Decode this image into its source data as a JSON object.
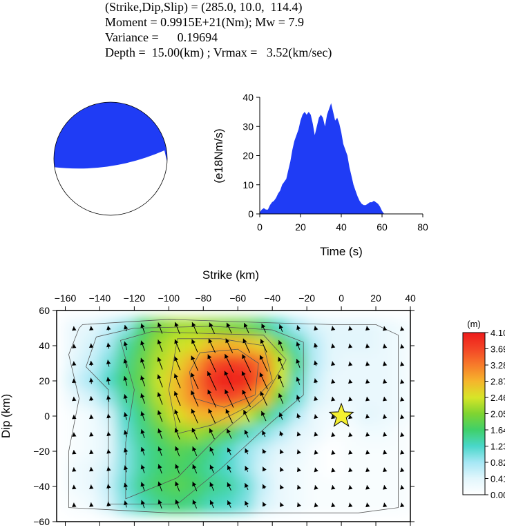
{
  "header": {
    "line1": "(Strike,Dip,Slip) = (285.0, 10.0,  114.4)",
    "line2": "Moment = 0.9915E+21(Nm); Mw = 7.9",
    "line3": "Variance =      0.19694",
    "line4": "Depth =  15.00(km) ; Vrmax =   3.52(km/sec)"
  },
  "colors": {
    "fill_blue": "#1f3cf5",
    "star": "#f5f030",
    "axis": "#000000"
  },
  "chart_data": [
    {
      "type": "beachball",
      "strike": 285.0,
      "dip": 10.0,
      "slip": 114.4
    },
    {
      "type": "area",
      "xlabel": "Time (s)",
      "ylabel": "(e18Nm/s)",
      "xlim": [
        0,
        80
      ],
      "ylim": [
        0,
        40
      ],
      "xticks": [
        0,
        20,
        40,
        60,
        80
      ],
      "yticks": [
        0,
        10,
        20,
        30,
        40
      ],
      "x": [
        0,
        1,
        2,
        3,
        4,
        5,
        6,
        7,
        8,
        9,
        10,
        11,
        12,
        13,
        14,
        15,
        16,
        17,
        18,
        19,
        20,
        21,
        22,
        23,
        24,
        25,
        26,
        27,
        28,
        29,
        30,
        31,
        32,
        33,
        34,
        35,
        36,
        37,
        38,
        39,
        40,
        41,
        42,
        43,
        44,
        45,
        46,
        47,
        48,
        49,
        50,
        51,
        52,
        53,
        54,
        55,
        56,
        57,
        58,
        59,
        60,
        61
      ],
      "values": [
        0.5,
        1.5,
        2,
        1.5,
        1.5,
        3,
        4,
        4.5,
        5.5,
        7,
        8,
        10,
        11,
        12,
        15,
        18,
        22,
        25,
        27,
        29,
        32,
        34,
        35,
        34,
        35,
        34,
        31,
        27,
        30,
        33,
        34,
        33,
        30,
        34,
        36,
        38,
        35,
        32,
        33,
        31,
        28,
        24,
        22,
        20,
        16,
        13,
        10,
        8,
        6,
        4.5,
        3.5,
        3,
        3,
        3.5,
        4,
        4,
        4.5,
        4,
        3.5,
        2.5,
        1,
        0
      ]
    },
    {
      "type": "heatmap",
      "xlabel": "Strike (km)",
      "ylabel": "Dip (km)",
      "xlim": [
        -165,
        40
      ],
      "ylim": [
        -60,
        60
      ],
      "xticks": [
        -160,
        -140,
        -120,
        -100,
        -80,
        -60,
        -40,
        -20,
        0,
        20,
        40
      ],
      "yticks": [
        -60,
        -40,
        -20,
        0,
        20,
        40,
        60
      ],
      "grid_strike": [
        -155,
        -145,
        -135,
        -125,
        -115,
        -105,
        -95,
        -85,
        -75,
        -65,
        -55,
        -45,
        -35,
        -25,
        -15,
        -5,
        5,
        15,
        25,
        35
      ],
      "grid_dip": [
        50,
        40,
        30,
        20,
        10,
        0,
        -10,
        -20,
        -30,
        -40,
        -50
      ],
      "slip": [
        [
          0.3,
          0.4,
          0.6,
          0.9,
          1.6,
          2.0,
          2.2,
          2.2,
          2.1,
          2.0,
          1.9,
          1.6,
          1.2,
          0.8,
          0.5,
          0.4,
          0.4,
          0.4,
          0.3,
          0.2
        ],
        [
          0.3,
          0.5,
          0.8,
          1.4,
          1.8,
          2.2,
          2.4,
          2.5,
          2.8,
          2.9,
          2.8,
          2.6,
          2.0,
          1.3,
          0.7,
          0.4,
          0.4,
          0.4,
          0.3,
          0.2
        ],
        [
          0.4,
          0.6,
          1.0,
          1.5,
          1.9,
          2.3,
          2.6,
          3.0,
          3.6,
          3.8,
          3.7,
          3.3,
          2.4,
          1.5,
          0.7,
          0.4,
          0.3,
          0.3,
          0.3,
          0.2
        ],
        [
          0.5,
          0.8,
          1.2,
          1.6,
          1.9,
          2.4,
          2.8,
          3.3,
          3.9,
          4.1,
          4.0,
          3.4,
          2.4,
          1.3,
          0.6,
          0.3,
          0.3,
          0.3,
          0.3,
          0.2
        ],
        [
          0.3,
          0.5,
          0.9,
          1.4,
          1.8,
          2.3,
          2.8,
          3.2,
          3.6,
          3.7,
          3.5,
          2.8,
          1.9,
          1.1,
          0.5,
          0.3,
          0.3,
          0.3,
          0.3,
          0.2
        ],
        [
          0.1,
          0.2,
          0.5,
          1.2,
          1.6,
          2.1,
          2.5,
          2.8,
          2.9,
          2.8,
          2.4,
          1.8,
          1.2,
          0.7,
          0.3,
          0.2,
          0.2,
          0.4,
          0.3,
          0.2
        ],
        [
          0.1,
          0.2,
          0.4,
          1.1,
          1.5,
          1.8,
          2.1,
          2.2,
          2.0,
          1.8,
          1.3,
          1.0,
          0.7,
          0.4,
          0.3,
          0.1,
          0.1,
          0.2,
          0.2,
          0.1
        ],
        [
          0.1,
          0.2,
          0.4,
          1.0,
          1.4,
          1.6,
          1.8,
          1.7,
          1.5,
          1.2,
          0.9,
          0.6,
          0.4,
          0.3,
          0.1,
          0.0,
          0.1,
          0.1,
          0.1,
          0.1
        ],
        [
          0.2,
          0.3,
          0.5,
          1.0,
          1.4,
          1.6,
          1.7,
          1.6,
          1.4,
          1.2,
          0.9,
          0.5,
          0.3,
          0.2,
          0.1,
          0.0,
          0.1,
          0.1,
          0.1,
          0.1
        ],
        [
          0.2,
          0.3,
          0.6,
          1.1,
          1.5,
          1.7,
          1.8,
          1.7,
          1.5,
          1.4,
          1.1,
          0.6,
          0.3,
          0.2,
          0.1,
          0.1,
          0.1,
          0.1,
          0.1,
          0.1
        ],
        [
          0.1,
          0.2,
          0.5,
          1.0,
          1.3,
          1.5,
          1.6,
          1.5,
          1.3,
          1.2,
          1.0,
          0.5,
          0.3,
          0.2,
          0.1,
          0.1,
          0.1,
          0.1,
          0.1,
          0.1
        ]
      ],
      "rake_deg": [
        [
          95,
          95,
          100,
          105,
          110,
          110,
          112,
          114,
          115,
          115,
          115,
          115,
          112,
          110,
          105,
          100,
          100,
          100,
          100,
          100
        ],
        [
          95,
          95,
          100,
          105,
          110,
          110,
          112,
          114,
          115,
          115,
          115,
          115,
          112,
          110,
          105,
          100,
          100,
          100,
          100,
          100
        ],
        [
          95,
          95,
          100,
          105,
          110,
          110,
          112,
          114,
          115,
          115,
          115,
          115,
          112,
          110,
          105,
          100,
          100,
          100,
          100,
          100
        ],
        [
          95,
          95,
          100,
          105,
          110,
          110,
          112,
          114,
          115,
          115,
          115,
          115,
          112,
          110,
          105,
          100,
          100,
          100,
          100,
          100
        ],
        [
          95,
          95,
          100,
          105,
          110,
          110,
          112,
          114,
          115,
          115,
          115,
          115,
          112,
          110,
          105,
          100,
          100,
          100,
          100,
          100
        ],
        [
          95,
          95,
          100,
          105,
          110,
          110,
          112,
          114,
          115,
          115,
          115,
          115,
          112,
          110,
          105,
          100,
          100,
          100,
          100,
          100
        ],
        [
          95,
          95,
          100,
          105,
          110,
          110,
          112,
          114,
          115,
          115,
          115,
          115,
          112,
          110,
          105,
          100,
          100,
          100,
          100,
          100
        ],
        [
          95,
          95,
          100,
          105,
          110,
          110,
          112,
          114,
          115,
          115,
          115,
          115,
          112,
          110,
          105,
          100,
          100,
          100,
          100,
          100
        ],
        [
          95,
          95,
          100,
          105,
          110,
          110,
          112,
          114,
          115,
          115,
          115,
          115,
          112,
          110,
          105,
          100,
          100,
          100,
          100,
          100
        ],
        [
          95,
          95,
          100,
          105,
          110,
          110,
          112,
          114,
          115,
          115,
          115,
          115,
          112,
          110,
          105,
          100,
          100,
          100,
          100,
          100
        ],
        [
          95,
          95,
          100,
          105,
          110,
          110,
          112,
          114,
          115,
          115,
          115,
          115,
          112,
          110,
          105,
          100,
          100,
          100,
          100,
          100
        ]
      ],
      "hypocenter": [
        0,
        0
      ],
      "colorbar": {
        "unit": "(m)",
        "ticks": [
          "0.00",
          "0.41",
          "0.82",
          "1.23",
          "1.64",
          "2.05",
          "2.46",
          "2.87",
          "3.28",
          "3.69",
          "4.10"
        ],
        "min": 0,
        "max": 4.1
      }
    }
  ]
}
